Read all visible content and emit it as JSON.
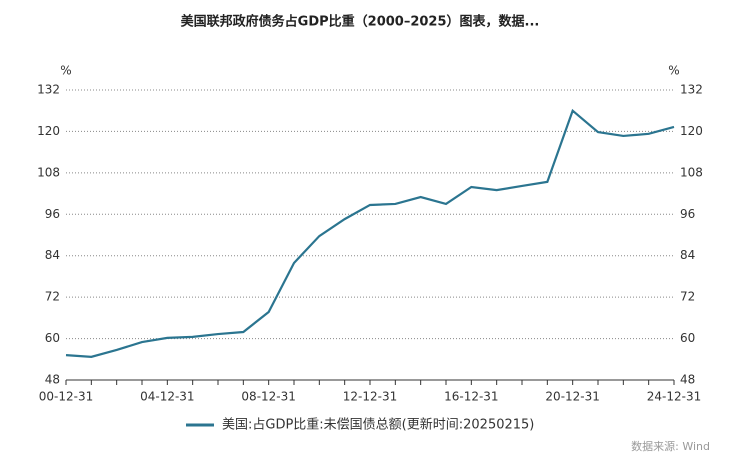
{
  "chart_data": {
    "type": "line",
    "title": "美国联邦政府债务占GDP比重（2000–2025）图表，数据...",
    "y_unit": "%",
    "y2_unit": "%",
    "categories": [
      "00-12-31",
      null,
      null,
      null,
      "04-12-31",
      null,
      null,
      null,
      "08-12-31",
      null,
      null,
      null,
      "12-12-31",
      null,
      null,
      null,
      "16-12-31",
      null,
      null,
      null,
      "20-12-31",
      null,
      null,
      null,
      "24-12-31"
    ],
    "series": [
      {
        "name": "美国:占GDP比重:未偿国债总额(更新时间:20250215)",
        "color": "#2b7590",
        "values": [
          55.2,
          54.7,
          56.7,
          59.0,
          60.2,
          60.5,
          61.3,
          61.9,
          67.7,
          81.9,
          89.7,
          94.6,
          98.7,
          99.0,
          101.0,
          99.0,
          103.9,
          103.0,
          104.2,
          105.4,
          126.0,
          119.8,
          118.7,
          119.3,
          121.3
        ]
      }
    ],
    "ylim": [
      48,
      132
    ],
    "yticks": [
      48,
      60,
      72,
      84,
      96,
      108,
      120,
      132
    ],
    "y2lim": [
      48,
      132
    ],
    "y2ticks": [
      48,
      60,
      72,
      84,
      96,
      108,
      120,
      132
    ],
    "grid": true,
    "source": "数据来源: Wind"
  }
}
